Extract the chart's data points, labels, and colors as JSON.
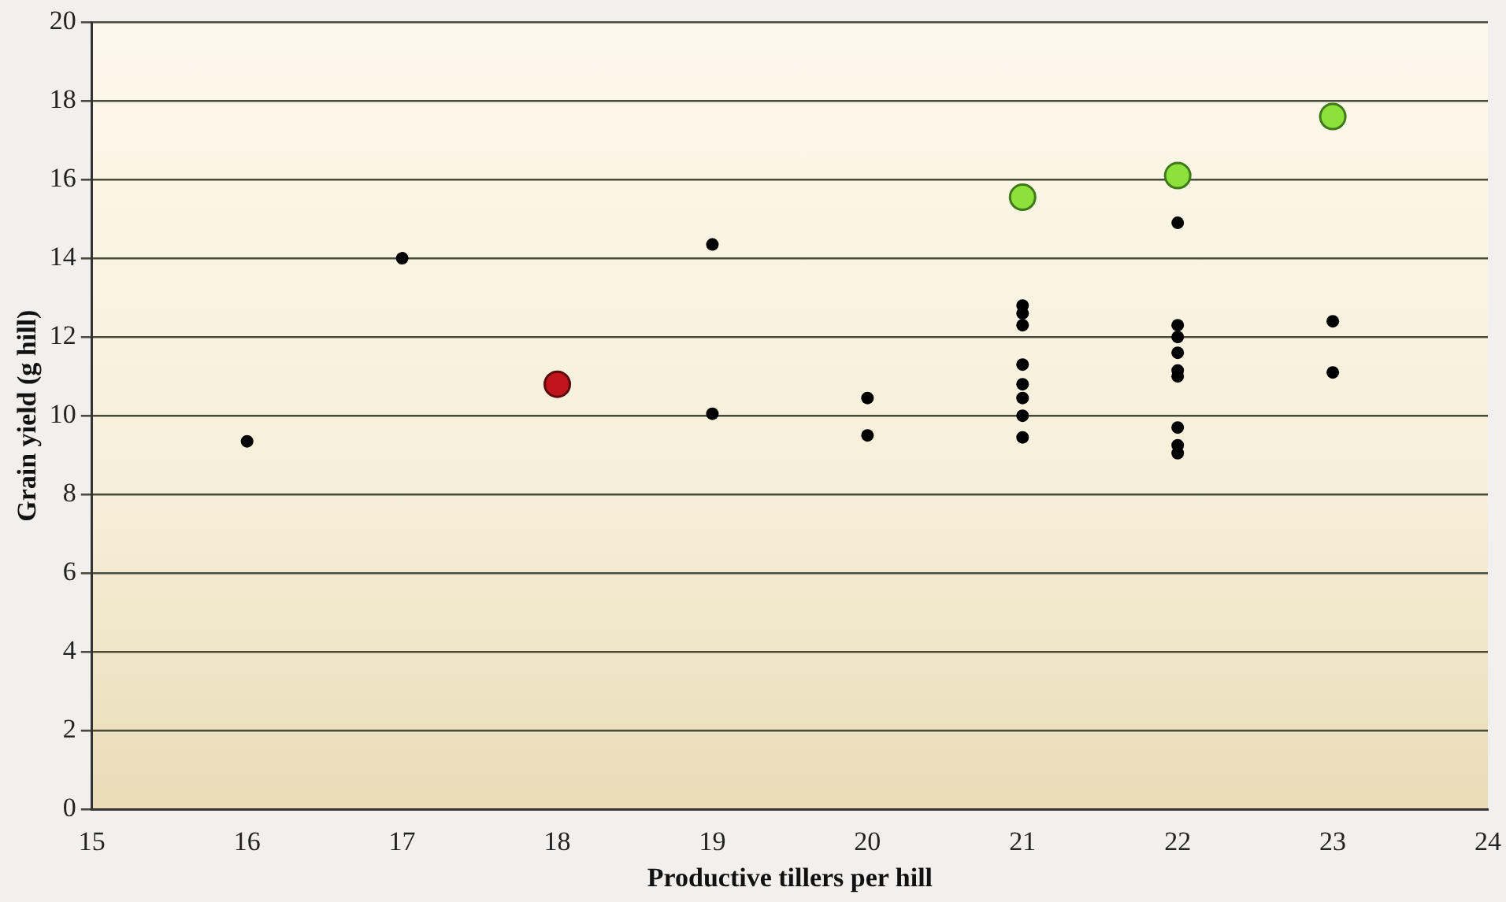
{
  "chart_data": {
    "type": "scatter",
    "xlabel": "Productive tillers per hill",
    "ylabel": "Grain yield (g hill)",
    "xlim": [
      15,
      24
    ],
    "xticks": [
      15,
      16,
      17,
      18,
      19,
      20,
      21,
      22,
      23,
      24
    ],
    "ylim": [
      0,
      20
    ],
    "yticks": [
      0,
      2,
      4,
      6,
      8,
      10,
      12,
      14,
      16,
      18,
      20
    ],
    "grid": "y",
    "marker": "circle",
    "series": [
      {
        "color": "#000000",
        "x": [
          16,
          17,
          19,
          19,
          20,
          20,
          21,
          21,
          21,
          21,
          21,
          21,
          21,
          21,
          22,
          22,
          22,
          22,
          22,
          22,
          22,
          22,
          22,
          23,
          23
        ],
        "values": [
          9.35,
          14.0,
          14.35,
          10.05,
          10.45,
          9.5,
          12.8,
          12.6,
          12.3,
          11.3,
          10.8,
          10.45,
          10.0,
          9.45,
          14.9,
          12.3,
          12.0,
          11.6,
          11.15,
          11.0,
          9.7,
          9.25,
          9.05,
          12.4,
          11.1
        ]
      },
      {
        "color": "#c0141c",
        "x": [
          18
        ],
        "values": [
          10.8
        ]
      },
      {
        "color": "#8ee03a",
        "x": [
          21,
          22,
          23
        ],
        "values": [
          15.55,
          16.1,
          17.6
        ]
      }
    ]
  }
}
